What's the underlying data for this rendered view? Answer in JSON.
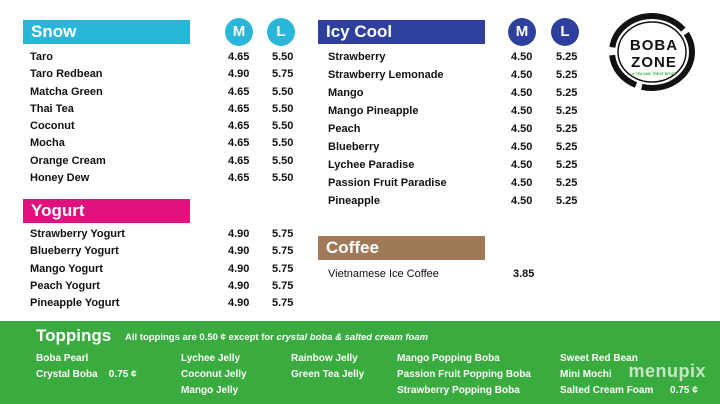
{
  "snow": {
    "title": "Snow",
    "color": "#29b6d8",
    "m_label": "M",
    "l_label": "L",
    "items": [
      {
        "name": "Taro",
        "m": "4.65",
        "l": "5.50"
      },
      {
        "name": "Taro Redbean",
        "m": "4.90",
        "l": "5.75"
      },
      {
        "name": "Matcha Green",
        "m": "4.65",
        "l": "5.50"
      },
      {
        "name": "Thai Tea",
        "m": "4.65",
        "l": "5.50"
      },
      {
        "name": "Coconut",
        "m": "4.65",
        "l": "5.50"
      },
      {
        "name": "Mocha",
        "m": "4.65",
        "l": "5.50"
      },
      {
        "name": "Orange Cream",
        "m": "4.65",
        "l": "5.50"
      },
      {
        "name": "Honey Dew",
        "m": "4.65",
        "l": "5.50"
      }
    ]
  },
  "yogurt": {
    "title": "Yogurt",
    "color": "#e0117f",
    "items": [
      {
        "name": "Strawberry Yogurt",
        "m": "4.90",
        "l": "5.75"
      },
      {
        "name": "Blueberry Yogurt",
        "m": "4.90",
        "l": "5.75"
      },
      {
        "name": "Mango Yogurt",
        "m": "4.90",
        "l": "5.75"
      },
      {
        "name": "Peach Yogurt",
        "m": "4.90",
        "l": "5.75"
      },
      {
        "name": "Pineapple Yogurt",
        "m": "4.90",
        "l": "5.75"
      }
    ]
  },
  "icy": {
    "title": "Icy Cool",
    "color": "#2e3f9e",
    "m_label": "M",
    "l_label": "L",
    "items": [
      {
        "name": "Strawberry",
        "m": "4.50",
        "l": "5.25"
      },
      {
        "name": "Strawberry Lemonade",
        "m": "4.50",
        "l": "5.25"
      },
      {
        "name": "Mango",
        "m": "4.50",
        "l": "5.25"
      },
      {
        "name": "Mango Pineapple",
        "m": "4.50",
        "l": "5.25"
      },
      {
        "name": "Peach",
        "m": "4.50",
        "l": "5.25"
      },
      {
        "name": "Blueberry",
        "m": "4.50",
        "l": "5.25"
      },
      {
        "name": "Lychee Paradise",
        "m": "4.50",
        "l": "5.25"
      },
      {
        "name": "Passion Fruit Paradise",
        "m": "4.50",
        "l": "5.25"
      },
      {
        "name": "Pineapple",
        "m": "4.50",
        "l": "5.25"
      }
    ]
  },
  "coffee": {
    "title": "Coffee",
    "color": "#a07a58",
    "items": [
      {
        "name": "Vietnamese Ice Coffee",
        "price": "3.85"
      }
    ]
  },
  "logo": {
    "line1": "BOBA",
    "line2": "ZONE",
    "tagline": "a TEA AND TREAT BITUE"
  },
  "toppings": {
    "title": "Toppings",
    "note_prefix": "All toppings are 0.50 ¢ except for ",
    "note_italic": "crystal boba & salted cream foam",
    "col1": [
      "Boba Pearl",
      "Crystal Boba    0.75 ¢"
    ],
    "col2": [
      "Lychee Jelly",
      "Coconut Jelly",
      "Mango Jelly"
    ],
    "col3": [
      "Rainbow Jelly",
      "Green Tea Jelly"
    ],
    "col4": [
      "Mango Popping Boba",
      "Passion Fruit Popping Boba",
      "Strawberry Popping Boba"
    ],
    "col5": [
      "Sweet Red Bean",
      "Mini Mochi",
      "Salted Cream Foam      0.75 ¢"
    ],
    "color": "#3aab3f"
  },
  "watermark": "menupix"
}
